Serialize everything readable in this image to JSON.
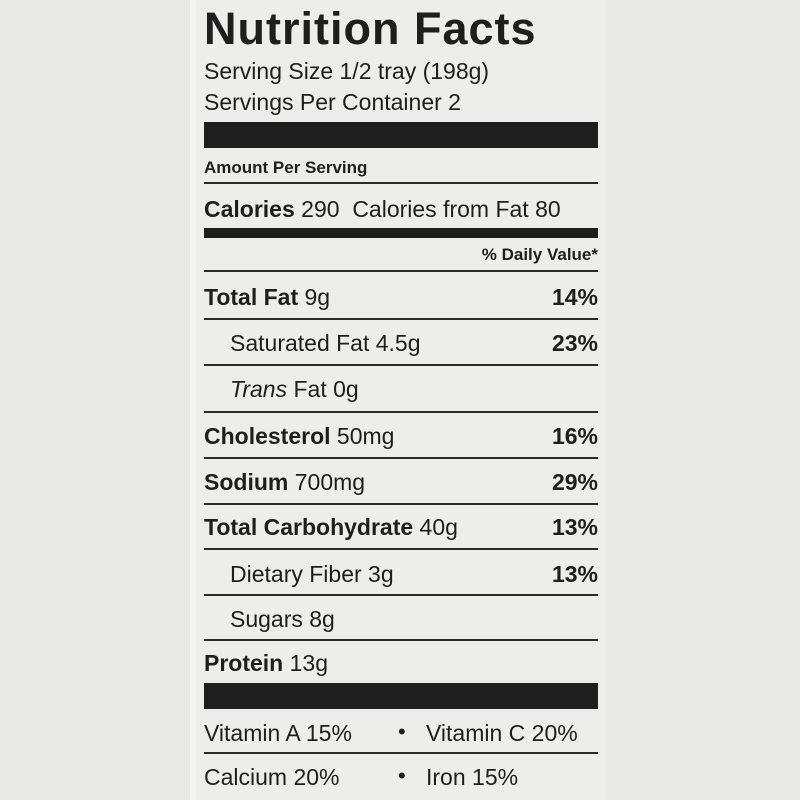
{
  "title": "Nutrition Facts",
  "serving_size": "Serving Size 1/2 tray (198g)",
  "servings_per_container": "Servings Per Container 2",
  "amount_per_serving": "Amount Per Serving",
  "calories": {
    "label": "Calories",
    "value": "290",
    "from_fat_label": "Calories from Fat",
    "from_fat_value": "80"
  },
  "daily_value_header": "% Daily Value*",
  "nutrients": [
    {
      "name": "Total Fat",
      "amount": "9g",
      "dv": "14%"
    },
    {
      "name": "Saturated Fat",
      "amount": "4.5g",
      "dv": "23%"
    },
    {
      "name": "Trans",
      "suffix": "Fat",
      "amount": "0g",
      "dv": ""
    },
    {
      "name": "Cholesterol",
      "amount": "50mg",
      "dv": "16%"
    },
    {
      "name": "Sodium",
      "amount": "700mg",
      "dv": "29%"
    },
    {
      "name": "Total Carbohydrate",
      "amount": "40g",
      "dv": "13%"
    },
    {
      "name": "Dietary Fiber",
      "amount": "3g",
      "dv": "13%"
    },
    {
      "name": "Sugars",
      "amount": "8g",
      "dv": ""
    },
    {
      "name": "Protein",
      "amount": "13g",
      "dv": ""
    }
  ],
  "vitamins": [
    {
      "text": "Vitamin A 15%"
    },
    {
      "text": "Vitamin C 20%"
    },
    {
      "text": "Calcium 20%"
    },
    {
      "text": "Iron 15%"
    }
  ],
  "bullet": "•"
}
